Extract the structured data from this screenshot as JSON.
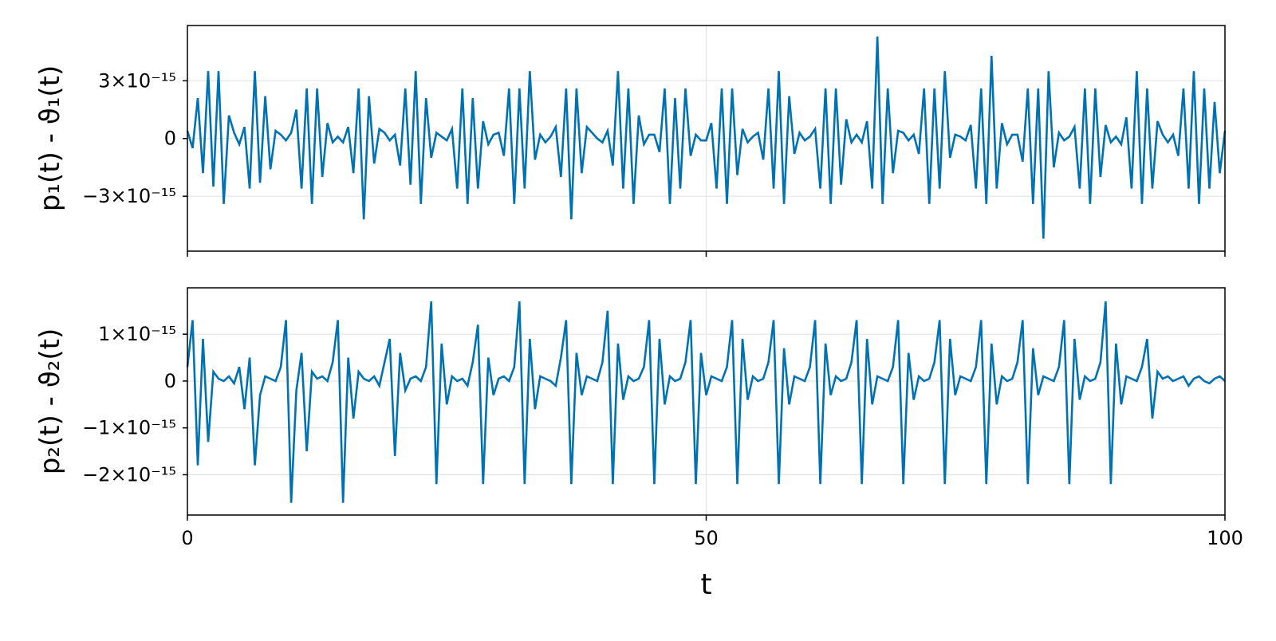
{
  "chart_data": [
    {
      "type": "line",
      "ylabel": "p₁(t) - ϑ₁(t)",
      "x": [
        0,
        0.5,
        1,
        1.5,
        2,
        2.5,
        3,
        3.5,
        4,
        4.5,
        5,
        5.5,
        6,
        6.5,
        7,
        7.5,
        8,
        8.5,
        9,
        9.5,
        10,
        10.5,
        11,
        11.5,
        12,
        12.5,
        13,
        13.5,
        14,
        14.5,
        15,
        15.5,
        16,
        16.5,
        17,
        17.5,
        18,
        18.5,
        19,
        19.5,
        20,
        20.5,
        21,
        21.5,
        22,
        22.5,
        23,
        23.5,
        24,
        24.5,
        25,
        25.5,
        26,
        26.5,
        27,
        27.5,
        28,
        28.5,
        29,
        29.5,
        30,
        30.5,
        31,
        31.5,
        32,
        32.5,
        33,
        33.5,
        34,
        34.5,
        35,
        35.5,
        36,
        36.5,
        37,
        37.5,
        38,
        38.5,
        39,
        39.5,
        40,
        40.5,
        41,
        41.5,
        42,
        42.5,
        43,
        43.5,
        44,
        44.5,
        45,
        45.5,
        46,
        46.5,
        47,
        47.5,
        48,
        48.5,
        49,
        49.5,
        50,
        50.5,
        51,
        51.5,
        52,
        52.5,
        53,
        53.5,
        54,
        54.5,
        55,
        55.5,
        56,
        56.5,
        57,
        57.5,
        58,
        58.5,
        59,
        59.5,
        60,
        60.5,
        61,
        61.5,
        62,
        62.5,
        63,
        63.5,
        64,
        64.5,
        65,
        65.5,
        66,
        66.5,
        67,
        67.5,
        68,
        68.5,
        69,
        69.5,
        70,
        70.5,
        71,
        71.5,
        72,
        72.5,
        73,
        73.5,
        74,
        74.5,
        75,
        75.5,
        76,
        76.5,
        77,
        77.5,
        78,
        78.5,
        79,
        79.5,
        80,
        80.5,
        81,
        81.5,
        82,
        82.5,
        83,
        83.5,
        84,
        84.5,
        85,
        85.5,
        86,
        86.5,
        87,
        87.5,
        88,
        88.5,
        89,
        89.5,
        90,
        90.5,
        91,
        91.5,
        92,
        92.5,
        93,
        93.5,
        94,
        94.5,
        95,
        95.5,
        96,
        96.5,
        97,
        97.5,
        98,
        98.5,
        99,
        99.5,
        100
      ],
      "series": [
        {
          "color": "#0072b2",
          "values": [
            4e-16,
            -5e-16,
            2.1e-15,
            -1.8e-15,
            3.5e-15,
            -2.5e-15,
            3.5e-15,
            -3.4e-15,
            1.2e-15,
            3e-16,
            -3e-16,
            6e-16,
            -2.6e-15,
            3.5e-15,
            -2.3e-15,
            2.2e-15,
            -1.6e-15,
            4e-16,
            2e-16,
            -1e-16,
            3e-16,
            1.5e-15,
            -2.6e-15,
            2.6e-15,
            -3.4e-15,
            2.6e-15,
            -2e-15,
            8e-16,
            -2e-16,
            1e-16,
            -2e-16,
            6e-16,
            -1.8e-15,
            2.6e-15,
            -4.2e-15,
            2.2e-15,
            -1.3e-15,
            5e-16,
            3e-16,
            -1e-16,
            2e-16,
            -1.4e-15,
            2.6e-15,
            -2.4e-15,
            3.5e-15,
            -3.4e-15,
            2.1e-15,
            -1e-15,
            3e-16,
            1e-16,
            -1e-16,
            5e-16,
            -2.6e-15,
            2.6e-15,
            -3.4e-15,
            2.1e-15,
            -2.6e-15,
            9e-16,
            -3e-16,
            2e-16,
            3e-16,
            -9e-16,
            2.6e-15,
            -3.4e-15,
            2.6e-15,
            -2.6e-15,
            3.5e-15,
            -1.1e-15,
            2e-16,
            -2e-16,
            1e-16,
            6e-16,
            -2e-15,
            2.6e-15,
            -4.2e-15,
            2.6e-15,
            -1.8e-15,
            6e-16,
            3e-16,
            0,
            -2e-16,
            4e-16,
            -1.4e-15,
            3.5e-15,
            -2.6e-15,
            2.6e-15,
            -3.4e-15,
            1.2e-15,
            -3e-16,
            2e-16,
            2e-16,
            -7e-16,
            2.6e-15,
            -3.4e-15,
            2.1e-15,
            -2.6e-15,
            2.6e-15,
            -9e-16,
            2e-16,
            -1e-16,
            -1e-16,
            8e-16,
            -2.6e-15,
            2.6e-15,
            -3.4e-15,
            2.6e-15,
            -1.9e-15,
            5e-16,
            -2e-16,
            1e-16,
            3e-16,
            -1.1e-15,
            2.6e-15,
            -2.6e-15,
            3.5e-15,
            -3.4e-15,
            2.2e-15,
            -8e-16,
            3e-16,
            -1e-16,
            1e-16,
            5e-16,
            -2.6e-15,
            2.6e-15,
            -3.4e-15,
            2.6e-15,
            -2.4e-15,
            1e-15,
            -2e-16,
            2e-16,
            -2e-16,
            9e-16,
            -2.6e-15,
            5.3e-15,
            -3.4e-15,
            2.6e-15,
            -1.8e-15,
            4e-16,
            3e-16,
            -1e-16,
            2e-16,
            -8e-16,
            2.6e-15,
            -3.4e-15,
            2.6e-15,
            -2.6e-15,
            3.5e-15,
            -1e-15,
            2e-16,
            1e-16,
            -1e-16,
            7e-16,
            -2.6e-15,
            2.6e-15,
            -3.4e-15,
            4.3e-15,
            -2.6e-15,
            8e-16,
            -3e-16,
            2e-16,
            2e-16,
            -1.2e-15,
            2.6e-15,
            -3.4e-15,
            2.6e-15,
            -5.2e-15,
            3.5e-15,
            -1.5e-15,
            3e-16,
            -1e-16,
            1e-16,
            6e-16,
            -2.6e-15,
            2.6e-15,
            -3.4e-15,
            2.6e-15,
            -2e-15,
            7e-16,
            -2e-16,
            1e-16,
            -3e-16,
            1.1e-15,
            -2.6e-15,
            3.5e-15,
            -3.4e-15,
            2.6e-15,
            -2.6e-15,
            9e-16,
            2e-16,
            -2e-16,
            2e-16,
            -9e-16,
            2.6e-15,
            -2.6e-15,
            3.5e-15,
            -3.4e-15,
            2.6e-15,
            -2.6e-15,
            1.9e-15,
            -1.8e-15,
            4e-16
          ]
        }
      ],
      "xlim": [
        0,
        100
      ],
      "xticks": [
        0,
        50,
        100
      ],
      "ylim": [
        -5.85e-15,
        5.87e-15
      ],
      "yticks": [
        {
          "value": -3e-15,
          "label": "−3×10⁻¹⁵"
        },
        0,
        {
          "value": 3e-15,
          "label": "3×10⁻¹⁵"
        }
      ],
      "grid": true
    },
    {
      "type": "line",
      "ylabel": "p₂(t) - ϑ₂(t)",
      "xlabel": "t",
      "x": [
        0,
        0.5,
        1,
        1.5,
        2,
        2.5,
        3,
        3.5,
        4,
        4.5,
        5,
        5.5,
        6,
        6.5,
        7,
        7.5,
        8,
        8.5,
        9,
        9.5,
        10,
        10.5,
        11,
        11.5,
        12,
        12.5,
        13,
        13.5,
        14,
        14.5,
        15,
        15.5,
        16,
        16.5,
        17,
        17.5,
        18,
        18.5,
        19,
        19.5,
        20,
        20.5,
        21,
        21.5,
        22,
        22.5,
        23,
        23.5,
        24,
        24.5,
        25,
        25.5,
        26,
        26.5,
        27,
        27.5,
        28,
        28.5,
        29,
        29.5,
        30,
        30.5,
        31,
        31.5,
        32,
        32.5,
        33,
        33.5,
        34,
        34.5,
        35,
        35.5,
        36,
        36.5,
        37,
        37.5,
        38,
        38.5,
        39,
        39.5,
        40,
        40.5,
        41,
        41.5,
        42,
        42.5,
        43,
        43.5,
        44,
        44.5,
        45,
        45.5,
        46,
        46.5,
        47,
        47.5,
        48,
        48.5,
        49,
        49.5,
        50,
        50.5,
        51,
        51.5,
        52,
        52.5,
        53,
        53.5,
        54,
        54.5,
        55,
        55.5,
        56,
        56.5,
        57,
        57.5,
        58,
        58.5,
        59,
        59.5,
        60,
        60.5,
        61,
        61.5,
        62,
        62.5,
        63,
        63.5,
        64,
        64.5,
        65,
        65.5,
        66,
        66.5,
        67,
        67.5,
        68,
        68.5,
        69,
        69.5,
        70,
        70.5,
        71,
        71.5,
        72,
        72.5,
        73,
        73.5,
        74,
        74.5,
        75,
        75.5,
        76,
        76.5,
        77,
        77.5,
        78,
        78.5,
        79,
        79.5,
        80,
        80.5,
        81,
        81.5,
        82,
        82.5,
        83,
        83.5,
        84,
        84.5,
        85,
        85.5,
        86,
        86.5,
        87,
        87.5,
        88,
        88.5,
        89,
        89.5,
        90,
        90.5,
        91,
        91.5,
        92,
        92.5,
        93,
        93.5,
        94,
        94.5,
        95,
        95.5,
        96,
        96.5,
        97,
        97.5,
        98,
        98.5,
        99,
        99.5,
        100
      ],
      "series": [
        {
          "color": "#0072b2",
          "values": [
            3e-16,
            1.3e-15,
            -1.8e-15,
            9e-16,
            -1.3e-15,
            2e-16,
            5e-17,
            0,
            1e-16,
            -5e-17,
            3e-16,
            -6e-16,
            5e-16,
            -1.8e-15,
            -3e-16,
            1e-16,
            5e-17,
            0,
            3e-16,
            1.3e-15,
            -2.6e-15,
            -2e-16,
            6e-16,
            -1.5e-15,
            2e-16,
            5e-17,
            1e-16,
            0,
            4e-16,
            1.3e-15,
            -2.6e-15,
            5e-16,
            -8e-16,
            2e-16,
            5e-17,
            0,
            1e-16,
            -1e-16,
            4e-16,
            9e-16,
            -1.6e-15,
            6e-16,
            -2e-16,
            5e-17,
            1e-16,
            0,
            3e-16,
            1.7e-15,
            -2.2e-15,
            8e-16,
            -5e-16,
            1e-16,
            0,
            5e-17,
            -1e-16,
            4e-16,
            1.2e-15,
            -2.2e-15,
            5e-16,
            -3e-16,
            5e-17,
            1e-16,
            0,
            3e-16,
            1.7e-15,
            -2.2e-15,
            9e-16,
            -6e-16,
            1e-16,
            5e-17,
            0,
            -1e-16,
            5e-16,
            1.3e-15,
            -2.2e-15,
            6e-16,
            -3e-16,
            1e-16,
            5e-17,
            0,
            4e-16,
            1.5e-15,
            -2.2e-15,
            8e-16,
            -4e-16,
            1e-16,
            0,
            5e-17,
            3e-16,
            1.3e-15,
            -2.2e-15,
            9e-16,
            -5e-16,
            1e-16,
            0,
            5e-17,
            4e-16,
            1.3e-15,
            -2.2e-15,
            6e-16,
            -3e-16,
            1e-16,
            5e-17,
            0,
            3e-16,
            1.3e-15,
            -2.2e-15,
            9e-16,
            -4e-16,
            1e-16,
            0,
            5e-17,
            4e-16,
            1.3e-15,
            -2.2e-15,
            7e-16,
            -5e-16,
            1e-16,
            5e-17,
            0,
            3e-16,
            1.3e-15,
            -2.2e-15,
            8e-16,
            -3e-16,
            1e-16,
            0,
            5e-17,
            4e-16,
            1.3e-15,
            -2.2e-15,
            9e-16,
            -5e-16,
            1e-16,
            5e-17,
            0,
            3e-16,
            1.3e-15,
            -2.2e-15,
            6e-16,
            -4e-16,
            1e-16,
            0,
            5e-17,
            4e-16,
            1.3e-15,
            -2.2e-15,
            9e-16,
            -3e-16,
            1e-16,
            5e-17,
            0,
            3e-16,
            1.3e-15,
            -2.2e-15,
            8e-16,
            -5e-16,
            1e-16,
            0,
            5e-17,
            4e-16,
            1.3e-15,
            -2.2e-15,
            7e-16,
            -3e-16,
            1e-16,
            5e-17,
            0,
            3e-16,
            1.3e-15,
            -2.2e-15,
            9e-16,
            -4e-16,
            1e-16,
            0,
            5e-17,
            4e-16,
            1.7e-15,
            -2.2e-15,
            8e-16,
            -5e-16,
            1e-16,
            5e-17,
            0,
            3e-16,
            9e-16,
            -8e-16,
            2e-16,
            5e-17,
            1e-16,
            0,
            5e-17,
            1e-16,
            -1e-16,
            5e-17,
            1e-16,
            0,
            -5e-17,
            5e-17,
            1e-16,
            0
          ]
        }
      ],
      "xlim": [
        0,
        100
      ],
      "xticks": [
        0,
        50,
        100
      ],
      "ylim": [
        -2.86e-15,
        1.99e-15
      ],
      "yticks": [
        {
          "value": -2e-15,
          "label": "−2×10⁻¹⁵"
        },
        {
          "value": -1e-15,
          "label": "−1×10⁻¹⁵"
        },
        0,
        {
          "value": 1e-15,
          "label": "1×10⁻¹⁵"
        }
      ],
      "grid": true
    }
  ]
}
